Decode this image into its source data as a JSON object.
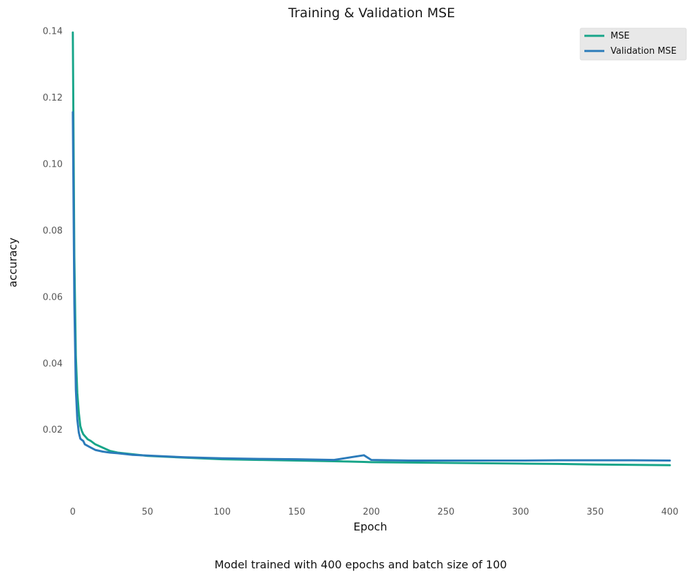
{
  "chart_data": {
    "type": "line",
    "title": "Training & Validation MSE",
    "xlabel": "Epoch",
    "ylabel": "accuracy",
    "caption": "Model trained with 400 epochs and batch size of 100",
    "xlim": [
      -5,
      405
    ],
    "ylim": [
      0.002,
      0.142
    ],
    "x_ticks": [
      0,
      50,
      100,
      150,
      200,
      250,
      300,
      350,
      400
    ],
    "x_tick_labels": [
      "0",
      "50",
      "100",
      "150",
      "200",
      "250",
      "300",
      "350",
      "400"
    ],
    "y_ticks": [
      0.02,
      0.04,
      0.06,
      0.08,
      0.1,
      0.12,
      0.14
    ],
    "y_tick_labels": [
      "0.02",
      "0.04",
      "0.06",
      "0.08",
      "0.10",
      "0.12",
      "0.14"
    ],
    "grid": false,
    "legend_position": "top-right",
    "x": [
      0,
      1,
      2,
      3,
      4,
      5,
      6,
      7,
      8,
      10,
      12,
      15,
      20,
      25,
      30,
      40,
      50,
      60,
      75,
      100,
      125,
      150,
      175,
      195,
      200,
      225,
      250,
      275,
      300,
      325,
      350,
      375,
      400
    ],
    "series": [
      {
        "name": "MSE",
        "color": "#17a589",
        "values": [
          0.1395,
          0.072,
          0.042,
          0.031,
          0.025,
          0.021,
          0.0195,
          0.0185,
          0.018,
          0.017,
          0.0165,
          0.0155,
          0.0145,
          0.0135,
          0.013,
          0.0125,
          0.012,
          0.0118,
          0.0115,
          0.011,
          0.0108,
          0.0106,
          0.0104,
          0.0102,
          0.0101,
          0.01,
          0.0099,
          0.0098,
          0.0097,
          0.0096,
          0.0094,
          0.0093,
          0.0092
        ]
      },
      {
        "name": "Validation MSE",
        "color": "#2b7bba",
        "values": [
          0.1155,
          0.058,
          0.032,
          0.023,
          0.019,
          0.0172,
          0.0168,
          0.0165,
          0.0155,
          0.015,
          0.0145,
          0.0138,
          0.0133,
          0.013,
          0.0128,
          0.0123,
          0.0121,
          0.0119,
          0.0116,
          0.0113,
          0.0111,
          0.011,
          0.0108,
          0.0122,
          0.0108,
          0.0106,
          0.0106,
          0.0106,
          0.0106,
          0.0107,
          0.0107,
          0.0107,
          0.0106
        ]
      }
    ]
  }
}
